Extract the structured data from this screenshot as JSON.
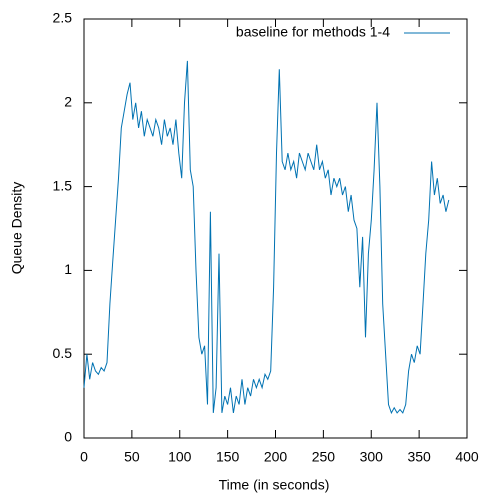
{
  "chart_data": {
    "type": "line",
    "xlabel": "Time (in seconds)",
    "ylabel": "Queue Density",
    "xlim": [
      0,
      400
    ],
    "xticks": [
      0,
      50,
      100,
      150,
      200,
      250,
      300,
      350,
      400
    ],
    "ylim": [
      0,
      2.5
    ],
    "yticks": [
      0,
      0.5,
      1,
      1.5,
      2,
      2.5
    ],
    "legend": "top-right",
    "x": [
      0,
      3,
      6,
      9,
      12,
      15,
      18,
      21,
      24,
      27,
      30,
      33,
      36,
      39,
      42,
      45,
      48,
      51,
      54,
      57,
      60,
      63,
      66,
      69,
      72,
      75,
      78,
      81,
      84,
      87,
      90,
      93,
      96,
      99,
      102,
      105,
      108,
      111,
      114,
      117,
      120,
      123,
      126,
      129,
      132,
      135,
      138,
      141,
      144,
      147,
      150,
      153,
      156,
      159,
      162,
      165,
      168,
      171,
      174,
      177,
      180,
      183,
      186,
      189,
      192,
      195,
      198,
      201,
      204,
      207,
      210,
      213,
      216,
      219,
      222,
      225,
      228,
      231,
      234,
      237,
      240,
      243,
      246,
      249,
      252,
      255,
      258,
      261,
      264,
      267,
      270,
      273,
      276,
      279,
      282,
      285,
      288,
      291,
      294,
      297,
      300,
      303,
      306,
      309,
      312,
      315,
      318,
      321,
      324,
      327,
      330,
      333,
      336,
      339,
      342,
      345,
      348,
      351,
      354,
      357,
      360,
      363,
      366,
      369,
      372,
      375,
      378,
      381
    ],
    "series": [
      {
        "name": "baseline for methods 1-4",
        "color": "#0072b2",
        "values": [
          0.3,
          0.5,
          0.35,
          0.45,
          0.4,
          0.38,
          0.42,
          0.4,
          0.45,
          0.8,
          1.05,
          1.3,
          1.55,
          1.85,
          1.95,
          2.05,
          2.12,
          1.9,
          2.0,
          1.85,
          1.95,
          1.8,
          1.9,
          1.85,
          1.8,
          1.9,
          1.85,
          1.75,
          1.9,
          1.8,
          1.85,
          1.75,
          1.9,
          1.7,
          1.55,
          2.0,
          2.25,
          1.6,
          1.5,
          1.0,
          0.6,
          0.5,
          0.55,
          0.2,
          1.35,
          0.15,
          0.3,
          1.1,
          0.15,
          0.25,
          0.2,
          0.3,
          0.15,
          0.25,
          0.2,
          0.35,
          0.2,
          0.3,
          0.25,
          0.35,
          0.3,
          0.35,
          0.3,
          0.38,
          0.35,
          0.4,
          0.9,
          1.7,
          2.2,
          1.65,
          1.6,
          1.7,
          1.6,
          1.65,
          1.55,
          1.7,
          1.65,
          1.6,
          1.7,
          1.65,
          1.6,
          1.75,
          1.6,
          1.65,
          1.55,
          1.6,
          1.45,
          1.55,
          1.5,
          1.55,
          1.45,
          1.5,
          1.35,
          1.45,
          1.3,
          1.25,
          0.9,
          1.2,
          0.6,
          1.1,
          1.3,
          1.6,
          2.0,
          1.5,
          0.8,
          0.5,
          0.2,
          0.15,
          0.18,
          0.15,
          0.17,
          0.15,
          0.2,
          0.4,
          0.5,
          0.45,
          0.55,
          0.5,
          0.8,
          1.1,
          1.3,
          1.65,
          1.45,
          1.55,
          1.4,
          1.45,
          1.35,
          1.42
        ]
      }
    ]
  }
}
